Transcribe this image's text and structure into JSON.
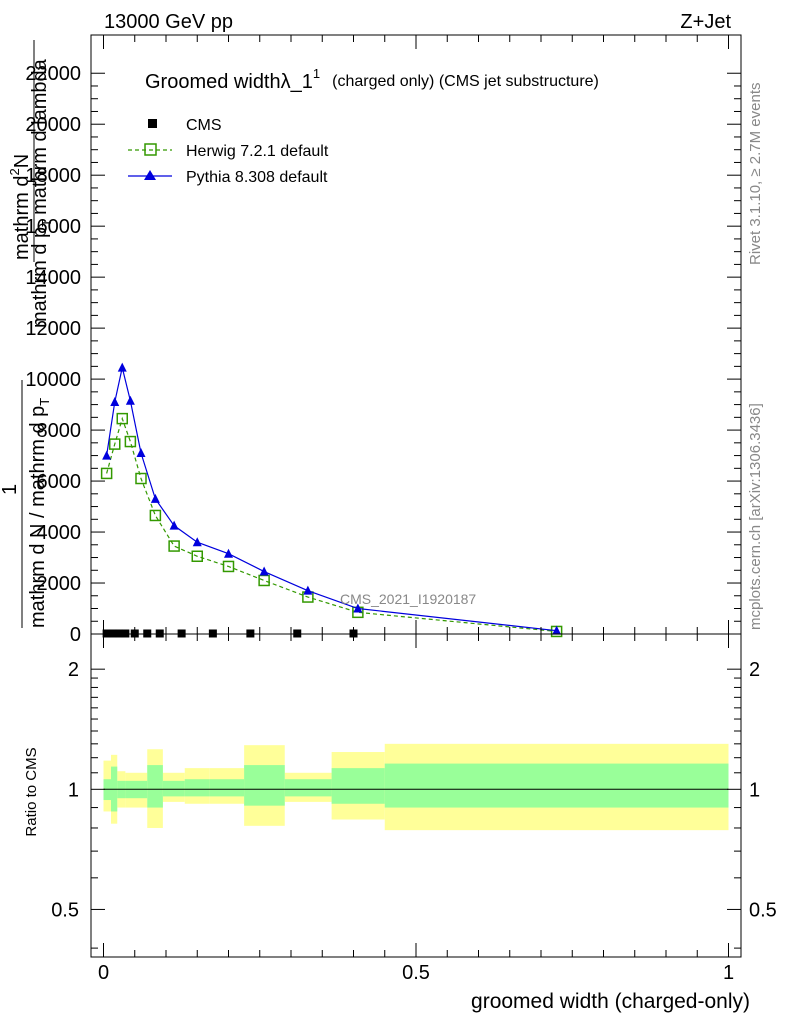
{
  "header": {
    "left": "13000 GeV pp",
    "right": "Z+Jet"
  },
  "side": {
    "rivet": "Rivet 3.1.10, ≥ 2.7M events",
    "mcplots": "mcplots.cern.ch [arXiv:1306.3436]"
  },
  "watermark": "CMS_2021_I1920187",
  "colors": {
    "herwig": "#339900",
    "pythia": "#0000dd",
    "band_inner": "#99ff99",
    "band_outer": "#ffff99"
  },
  "chart_data": [
    {
      "type": "line",
      "title_main": "Groomed width",
      "title_lambda": "λ_1",
      "title_sup": "1",
      "title_rest": "(charged only) (CMS jet substructure)",
      "ylabel_top_num": "mathrm d",
      "ylabel_top_sup": "2",
      "ylabel_top_N": "N",
      "ylabel_top_den": "mathrm d p",
      "ylabel_top_sub": "T",
      "ylabel_top_den2": "mathrm d lambda",
      "ylabel_one": "1",
      "ylabel_bottom": "mathrm d N / mathrm d p",
      "ylabel_bottom_sub": "T",
      "ylim": [
        0,
        23500
      ],
      "xlim": [
        -0.02,
        1.02
      ],
      "yticks": [
        0,
        2000,
        4000,
        6000,
        8000,
        10000,
        12000,
        14000,
        16000,
        18000,
        20000,
        22000
      ],
      "ytick_labels": [
        "0",
        "2000",
        "4000",
        "6000",
        "8000",
        "10000",
        "12000",
        "14000",
        "16000",
        "18000",
        "20000",
        "22000"
      ],
      "legend": {
        "placement": "top-left",
        "cms": "CMS",
        "herwig": "Herwig 7.2.1 default",
        "pythia": "Pythia 8.308 default"
      },
      "series": [
        {
          "name": "CMS",
          "x": [
            0.005,
            0.015,
            0.025,
            0.035,
            0.05,
            0.07,
            0.09,
            0.125,
            0.175,
            0.235,
            0.31,
            0.4
          ],
          "y": [
            20,
            20,
            20,
            20,
            20,
            20,
            20,
            20,
            20,
            20,
            20,
            20
          ]
        },
        {
          "name": "Herwig 7.2.1 default",
          "x": [
            0.005,
            0.018,
            0.03,
            0.043,
            0.06,
            0.083,
            0.113,
            0.15,
            0.2,
            0.257,
            0.327,
            0.407,
            0.725
          ],
          "y": [
            6300,
            7450,
            8450,
            7550,
            6100,
            4650,
            3450,
            3050,
            2650,
            2100,
            1450,
            850,
            100
          ]
        },
        {
          "name": "Pythia 8.308 default",
          "x": [
            0.005,
            0.018,
            0.03,
            0.043,
            0.06,
            0.083,
            0.113,
            0.15,
            0.2,
            0.257,
            0.327,
            0.407,
            0.725
          ],
          "y": [
            7000,
            9100,
            10450,
            9150,
            7100,
            5300,
            4250,
            3600,
            3150,
            2450,
            1700,
            1000,
            130
          ]
        }
      ]
    },
    {
      "type": "area",
      "ylabel": "Ratio to CMS",
      "xlabel": "groomed width (charged-only)",
      "ylim": [
        0.38,
        2.45
      ],
      "log_scale_y": true,
      "xlim": [
        -0.02,
        1.02
      ],
      "xticks": [
        0,
        0.5,
        1
      ],
      "xtick_labels": [
        "0",
        "0.5",
        "1"
      ],
      "yticks": [
        0.5,
        1,
        2
      ],
      "ytick_labels": [
        "0.5",
        "1",
        "2"
      ],
      "bins": [
        {
          "x0": 0.0,
          "x1": 0.012,
          "inner": [
            0.94,
            1.06
          ],
          "outer": [
            0.88,
            1.18
          ]
        },
        {
          "x0": 0.012,
          "x1": 0.022,
          "inner": [
            0.88,
            1.14
          ],
          "outer": [
            0.82,
            1.22
          ]
        },
        {
          "x0": 0.022,
          "x1": 0.035,
          "inner": [
            0.95,
            1.05
          ],
          "outer": [
            0.9,
            1.11
          ]
        },
        {
          "x0": 0.035,
          "x1": 0.07,
          "inner": [
            0.95,
            1.05
          ],
          "outer": [
            0.9,
            1.1
          ]
        },
        {
          "x0": 0.07,
          "x1": 0.095,
          "inner": [
            0.9,
            1.15
          ],
          "outer": [
            0.8,
            1.26
          ]
        },
        {
          "x0": 0.095,
          "x1": 0.13,
          "inner": [
            0.96,
            1.05
          ],
          "outer": [
            0.93,
            1.1
          ]
        },
        {
          "x0": 0.13,
          "x1": 0.17,
          "inner": [
            0.96,
            1.06
          ],
          "outer": [
            0.92,
            1.13
          ]
        },
        {
          "x0": 0.17,
          "x1": 0.225,
          "inner": [
            0.96,
            1.06
          ],
          "outer": [
            0.92,
            1.13
          ]
        },
        {
          "x0": 0.225,
          "x1": 0.29,
          "inner": [
            0.91,
            1.15
          ],
          "outer": [
            0.81,
            1.29
          ]
        },
        {
          "x0": 0.29,
          "x1": 0.365,
          "inner": [
            0.96,
            1.06
          ],
          "outer": [
            0.93,
            1.1
          ]
        },
        {
          "x0": 0.365,
          "x1": 0.45,
          "inner": [
            0.92,
            1.13
          ],
          "outer": [
            0.84,
            1.24
          ]
        },
        {
          "x0": 0.45,
          "x1": 1.0,
          "inner": [
            0.9,
            1.16
          ],
          "outer": [
            0.79,
            1.3
          ]
        }
      ]
    }
  ]
}
